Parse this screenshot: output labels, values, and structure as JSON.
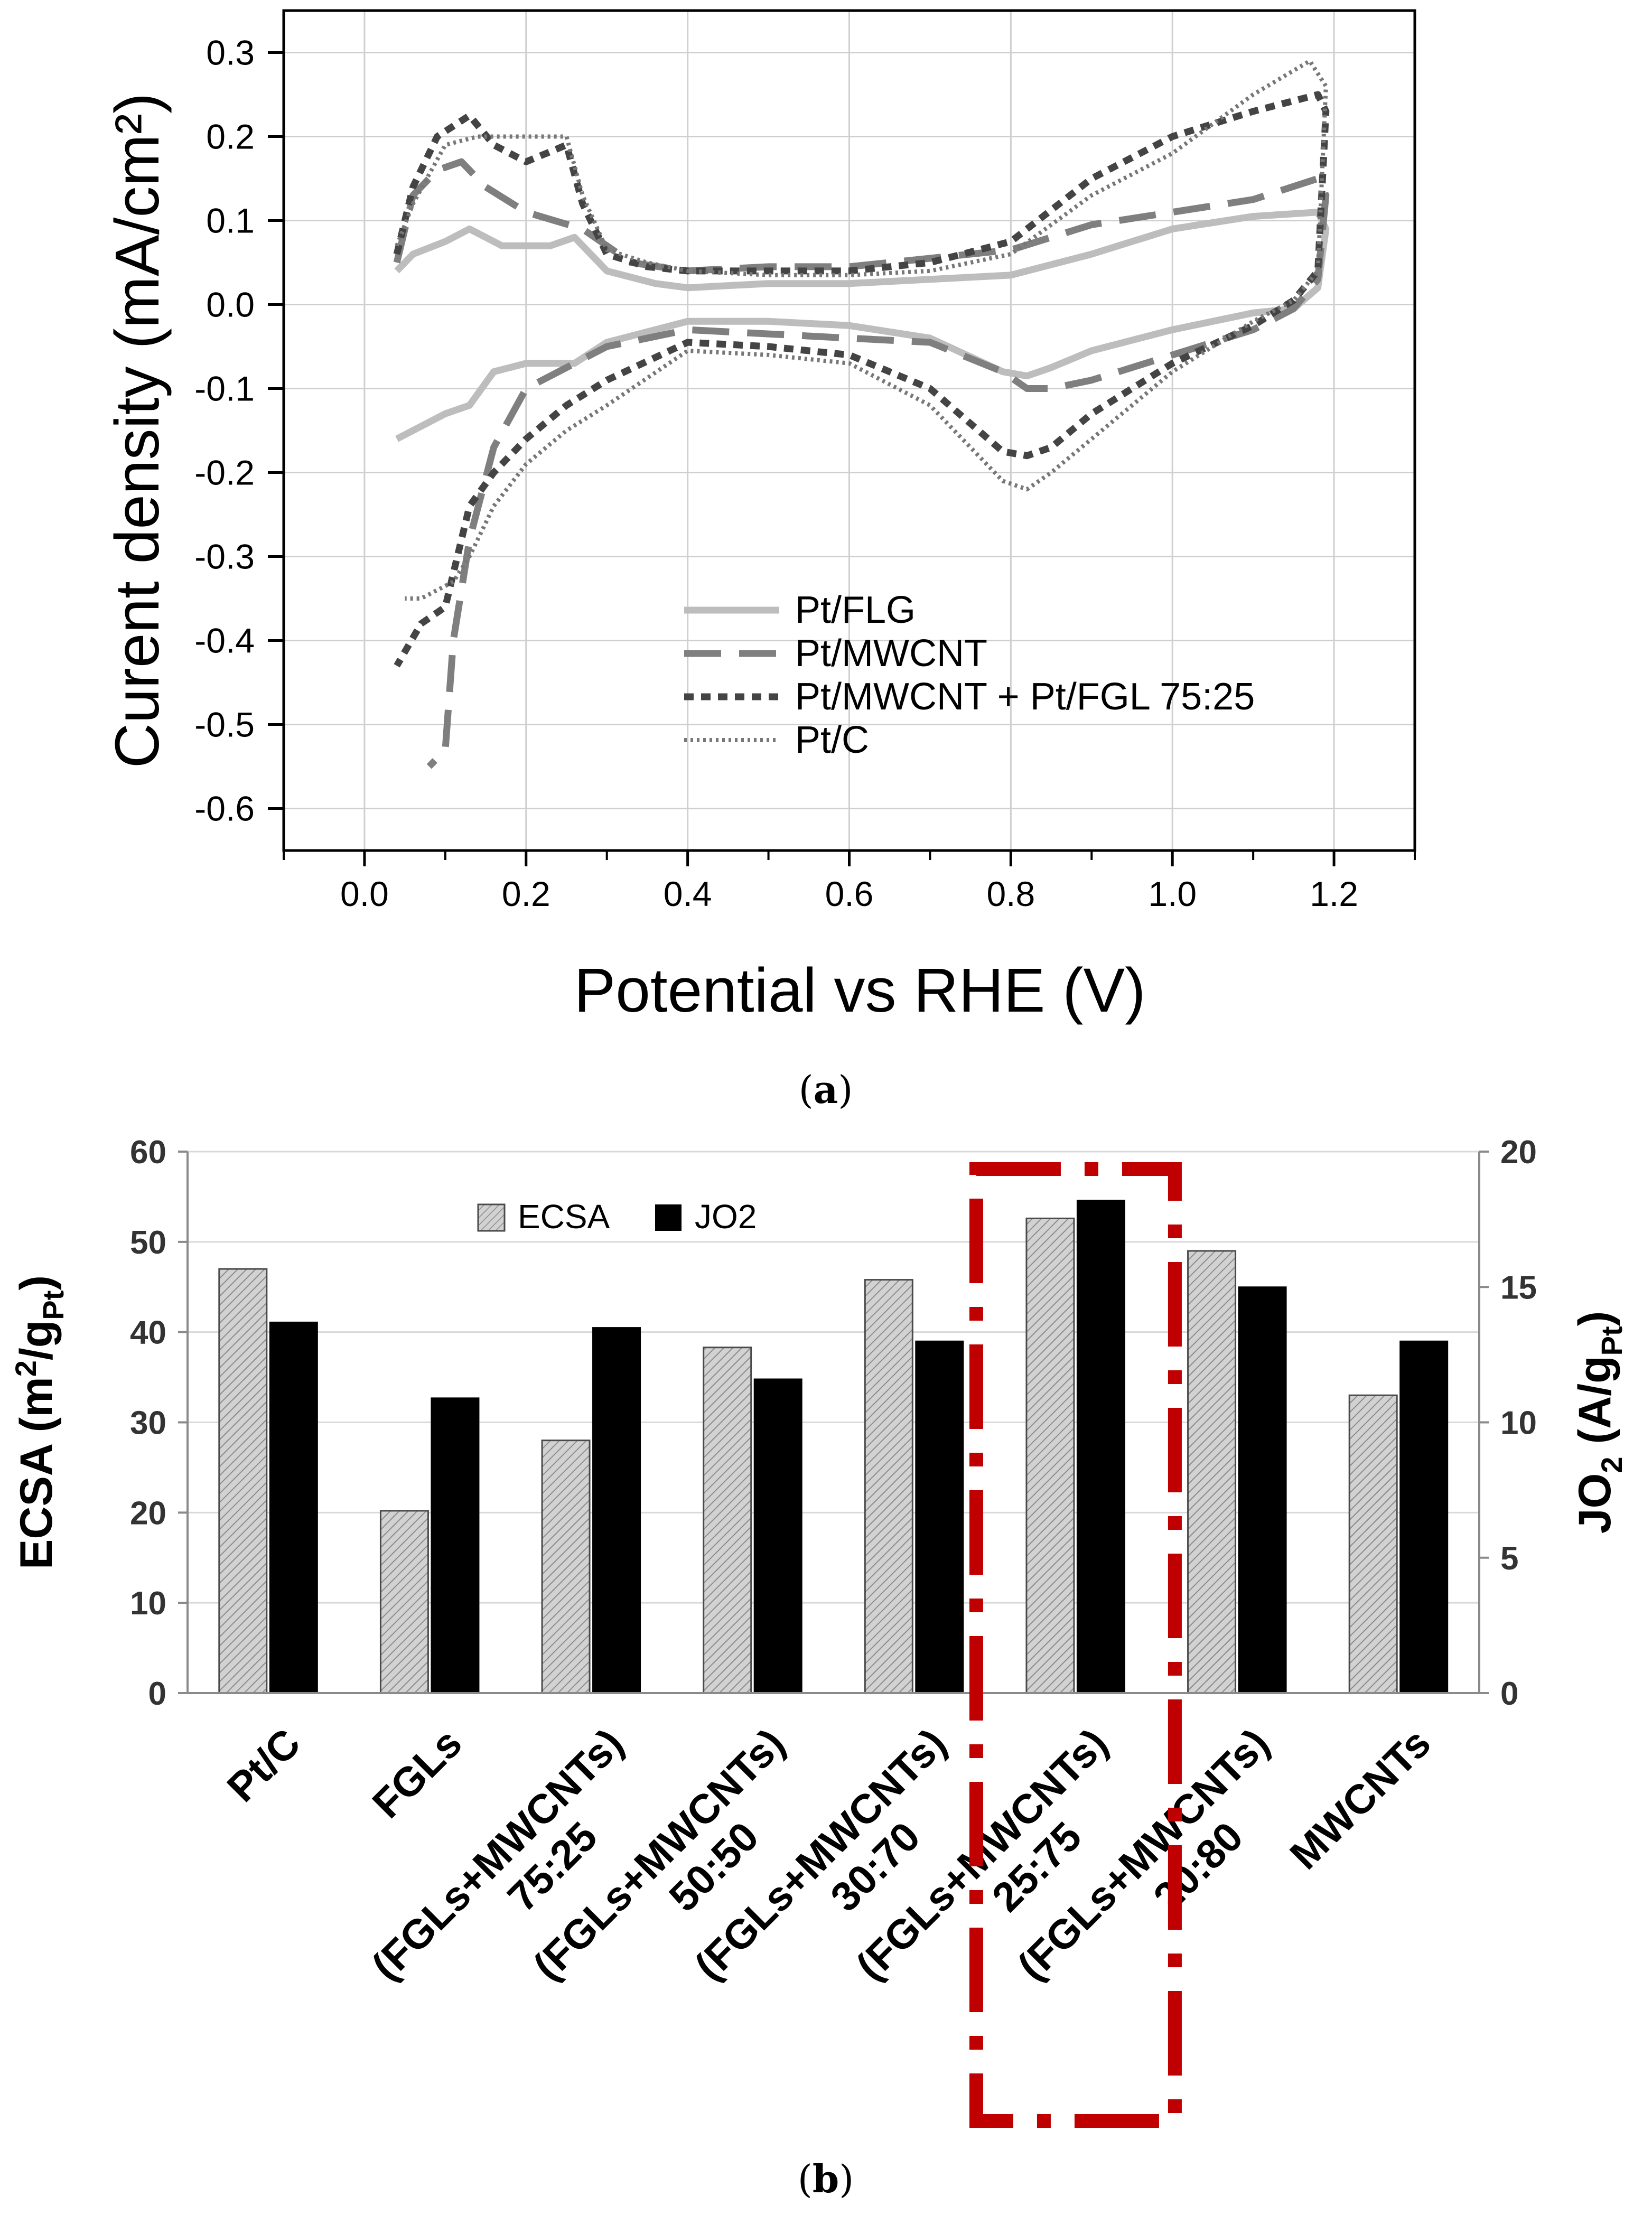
{
  "panel_a": {
    "label_open": "(",
    "label_letter": "a",
    "label_close": ")"
  },
  "panel_b": {
    "label_open": "(",
    "label_letter": "b",
    "label_close": ")"
  },
  "chart_data": [
    {
      "type": "line",
      "title": "",
      "xlabel": "Potential vs RHE (V)",
      "ylabel": "Curent density (mA/cm²)",
      "xlim": [
        -0.1,
        1.3
      ],
      "ylim": [
        -0.65,
        0.35
      ],
      "xticks": [
        0.0,
        0.2,
        0.4,
        0.6,
        0.8,
        1.0,
        1.2
      ],
      "xtick_labels": [
        "0.0",
        "0.2",
        "0.4",
        "0.6",
        "0.8",
        "1.0",
        "1.2"
      ],
      "yticks": [
        0.3,
        0.2,
        0.1,
        0.0,
        -0.1,
        -0.2,
        -0.3,
        -0.4,
        -0.5,
        -0.6
      ],
      "ytick_labels": [
        "0.3",
        "0.2",
        "0.1",
        "0.0",
        "-0.1",
        "-0.2",
        "-0.3",
        "-0.4",
        "-0.5",
        "-0.6"
      ],
      "grid": true,
      "legend": "lower-right",
      "series": [
        {
          "name": "Pt/FLG",
          "color": "#bdbdbd",
          "dash": "solid",
          "x": [
            0.04,
            0.06,
            0.1,
            0.13,
            0.17,
            0.23,
            0.26,
            0.3,
            0.36,
            0.4,
            0.5,
            0.6,
            0.7,
            0.8,
            0.9,
            1.0,
            1.1,
            1.18,
            1.19,
            1.18,
            1.15,
            1.1,
            1.0,
            0.9,
            0.85,
            0.82,
            0.79,
            0.7,
            0.6,
            0.5,
            0.4,
            0.3,
            0.26,
            0.2,
            0.16,
            0.13,
            0.1,
            0.06,
            0.04
          ],
          "y": [
            0.04,
            0.06,
            0.075,
            0.09,
            0.07,
            0.07,
            0.08,
            0.04,
            0.025,
            0.02,
            0.025,
            0.025,
            0.03,
            0.035,
            0.06,
            0.09,
            0.105,
            0.11,
            0.09,
            0.02,
            -0.005,
            -0.01,
            -0.03,
            -0.055,
            -0.075,
            -0.085,
            -0.08,
            -0.04,
            -0.025,
            -0.02,
            -0.02,
            -0.045,
            -0.07,
            -0.07,
            -0.08,
            -0.12,
            -0.13,
            -0.15,
            -0.16
          ]
        },
        {
          "name": "Pt/MWCNT",
          "color": "#7f7f7f",
          "dash": "long-dash",
          "x": [
            0.04,
            0.06,
            0.09,
            0.12,
            0.15,
            0.2,
            0.27,
            0.33,
            0.4,
            0.5,
            0.6,
            0.7,
            0.8,
            0.9,
            1.0,
            1.1,
            1.18,
            1.19,
            1.18,
            1.15,
            1.1,
            1.0,
            0.9,
            0.85,
            0.82,
            0.79,
            0.7,
            0.6,
            0.5,
            0.4,
            0.3,
            0.25,
            0.2,
            0.16,
            0.13,
            0.11,
            0.1,
            0.09,
            0.08
          ],
          "y": [
            0.05,
            0.13,
            0.16,
            0.17,
            0.14,
            0.11,
            0.09,
            0.05,
            0.04,
            0.045,
            0.045,
            0.055,
            0.065,
            0.095,
            0.11,
            0.125,
            0.15,
            0.13,
            0.03,
            -0.005,
            -0.03,
            -0.06,
            -0.09,
            -0.1,
            -0.1,
            -0.08,
            -0.045,
            -0.04,
            -0.035,
            -0.03,
            -0.05,
            -0.075,
            -0.1,
            -0.17,
            -0.28,
            -0.4,
            -0.53,
            -0.54,
            -0.55
          ]
        },
        {
          "name": "Pt/MWCNT + Pt/FGL 75:25",
          "color": "#444444",
          "dash": "dot",
          "x": [
            0.04,
            0.06,
            0.09,
            0.13,
            0.16,
            0.2,
            0.25,
            0.27,
            0.3,
            0.35,
            0.4,
            0.5,
            0.6,
            0.7,
            0.8,
            0.9,
            1.0,
            1.1,
            1.18,
            1.19,
            1.18,
            1.15,
            1.1,
            1.0,
            0.9,
            0.85,
            0.82,
            0.79,
            0.7,
            0.6,
            0.5,
            0.4,
            0.3,
            0.25,
            0.2,
            0.16,
            0.13,
            0.11,
            0.1,
            0.07,
            0.04
          ],
          "y": [
            0.06,
            0.14,
            0.2,
            0.225,
            0.19,
            0.17,
            0.19,
            0.12,
            0.06,
            0.045,
            0.04,
            0.04,
            0.04,
            0.05,
            0.075,
            0.15,
            0.2,
            0.23,
            0.25,
            0.23,
            0.04,
            0.005,
            -0.025,
            -0.07,
            -0.13,
            -0.17,
            -0.18,
            -0.175,
            -0.1,
            -0.06,
            -0.05,
            -0.045,
            -0.09,
            -0.12,
            -0.16,
            -0.2,
            -0.24,
            -0.32,
            -0.36,
            -0.38,
            -0.43
          ]
        },
        {
          "name": "Pt/C",
          "color": "#777777",
          "dash": "fine-dot",
          "x": [
            0.04,
            0.06,
            0.1,
            0.14,
            0.2,
            0.25,
            0.27,
            0.3,
            0.35,
            0.4,
            0.5,
            0.6,
            0.7,
            0.8,
            0.9,
            1.0,
            1.1,
            1.17,
            1.19,
            1.18,
            1.15,
            1.1,
            1.0,
            0.9,
            0.85,
            0.82,
            0.79,
            0.7,
            0.6,
            0.5,
            0.4,
            0.3,
            0.25,
            0.2,
            0.16,
            0.13,
            0.11,
            0.09,
            0.07,
            0.05
          ],
          "y": [
            0.07,
            0.12,
            0.19,
            0.2,
            0.2,
            0.2,
            0.13,
            0.065,
            0.05,
            0.04,
            0.035,
            0.035,
            0.04,
            0.06,
            0.13,
            0.18,
            0.25,
            0.29,
            0.26,
            0.04,
            0.005,
            -0.02,
            -0.08,
            -0.16,
            -0.2,
            -0.22,
            -0.21,
            -0.12,
            -0.07,
            -0.06,
            -0.055,
            -0.12,
            -0.15,
            -0.19,
            -0.24,
            -0.3,
            -0.33,
            -0.34,
            -0.35,
            -0.35
          ]
        }
      ]
    },
    {
      "type": "bar",
      "title": "",
      "xlabel": "",
      "ylabel": "ECSA (m²/gPt)",
      "ylabel_right": "JO2 (A/gPt)",
      "ylim": [
        0,
        60
      ],
      "ylim_right": [
        0,
        20
      ],
      "yticks": [
        60,
        50,
        40,
        30,
        20,
        10,
        0
      ],
      "ytick_labels": [
        "60",
        "50",
        "40",
        "30",
        "20",
        "10",
        "0"
      ],
      "yticks_right": [
        20,
        15,
        10,
        5,
        0
      ],
      "ytick_labels_right": [
        "20",
        "15",
        "10",
        "5",
        "0"
      ],
      "legend": "top-center",
      "categories": [
        [
          "Pt/C"
        ],
        [
          "FGLs"
        ],
        [
          "(FGLs+MWCNTs)",
          "75:25"
        ],
        [
          "(FGLs+MWCNTs)",
          "50:50"
        ],
        [
          "(FGLs+MWCNTs)",
          "30:70"
        ],
        [
          "(FGLs+MWCNTs)",
          "25:75"
        ],
        [
          "(FGLs+MWCNTs)",
          "20:80"
        ],
        [
          "MWCNTs"
        ]
      ],
      "series": [
        {
          "name": "ECSA",
          "axis": "left",
          "values": [
            47,
            20.2,
            28,
            38.3,
            45.8,
            52.6,
            49,
            33
          ]
        },
        {
          "name": "JO2",
          "axis": "right",
          "values": [
            13.7,
            10.9,
            13.5,
            11.6,
            13.0,
            18.2,
            15.0,
            13.0
          ]
        }
      ],
      "highlight_category": 5
    }
  ]
}
